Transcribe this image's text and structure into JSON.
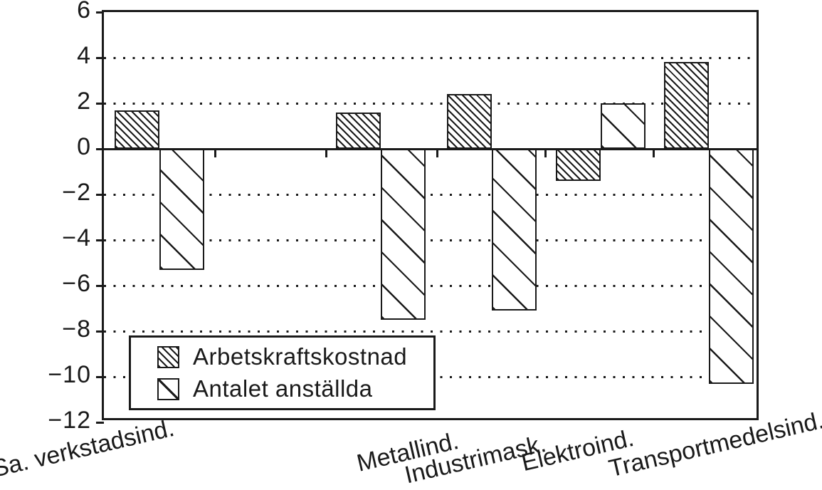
{
  "figure": {
    "background": "#ffffff",
    "ink": "#1a1a1a"
  },
  "y_axis": {
    "tick_labels": [
      "6",
      "4",
      "2",
      "0",
      "−2",
      "−4",
      "−6",
      "−8",
      "−10",
      "−12"
    ],
    "tick_values": [
      6,
      4,
      2,
      0,
      -2,
      -4,
      -6,
      -8,
      -10,
      -12
    ]
  },
  "x_axis": {
    "category_labels": [
      "Sa. verkstadsind.",
      "Metallind.",
      "Industrimask.",
      "Elektroind.",
      "Transportmedelsind."
    ]
  },
  "legend": {
    "items": [
      {
        "label": "Arbetskraftskostnad",
        "swatch": "dense-diagonal-hatch"
      },
      {
        "label": "Antalet anställda",
        "swatch": "single-diagonal-hatch"
      }
    ]
  },
  "chart_data": {
    "type": "bar",
    "title": "",
    "xlabel": "",
    "ylabel": "",
    "categories": [
      "Sa. verkstadsind.",
      "Metallind.",
      "Industrimask.",
      "Elektroind.",
      "Transportmedelsind."
    ],
    "series": [
      {
        "name": "Arbetskraftskostnad",
        "hatch": "dense-diagonal",
        "values": [
          1.7,
          1.6,
          2.4,
          -1.4,
          3.8
        ]
      },
      {
        "name": "Antalet anställda",
        "hatch": "sparse-diagonal",
        "values": [
          -5.3,
          -7.5,
          -7.1,
          2.0,
          -10.3
        ]
      }
    ],
    "ylim": [
      -12,
      6
    ],
    "ytick_step": 2,
    "grid": "dotted-horizontal",
    "legend_position": "inside-bottom-left",
    "x_gap_after_first_category": true
  }
}
